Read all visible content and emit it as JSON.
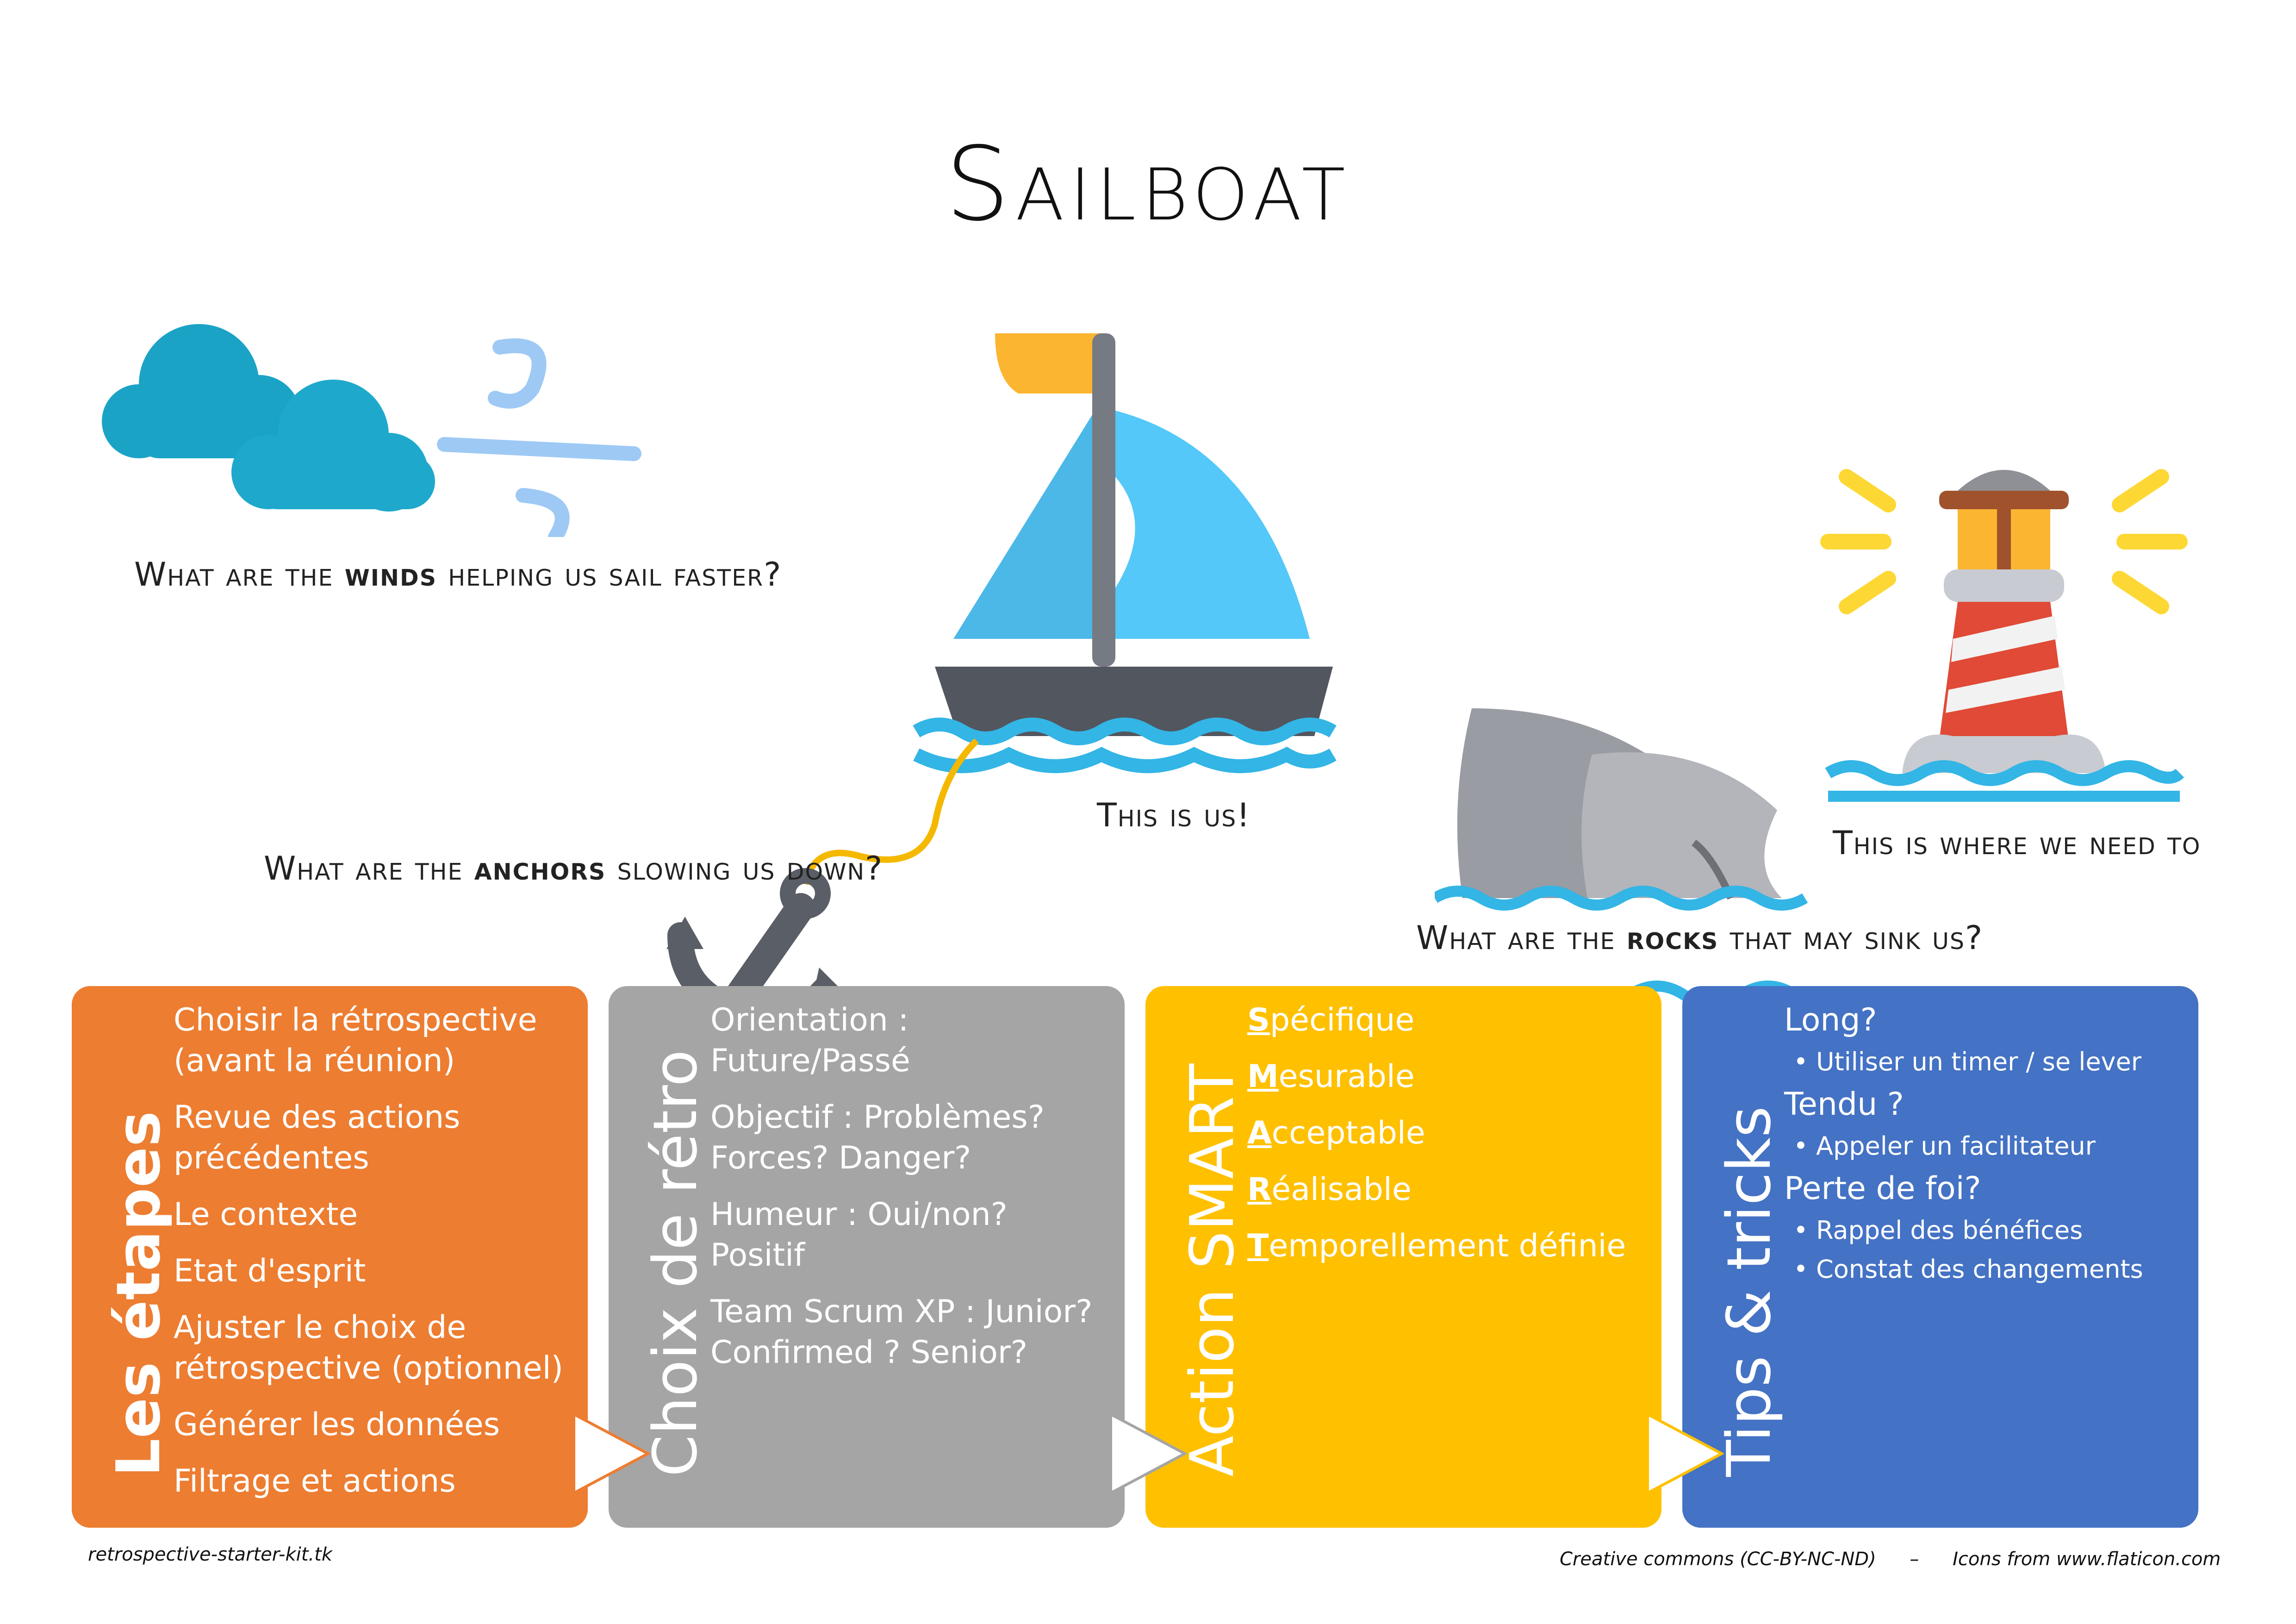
{
  "title": "Sailboat",
  "prompts": {
    "winds": {
      "pre": "What are the ",
      "key": "winds",
      "post": " helping us sail faster?"
    },
    "us": "This is us!",
    "anchors": {
      "pre": "What are the ",
      "key": "anchors",
      "post": " slowing us down?"
    },
    "goal": "This is where we need to",
    "rocks": {
      "pre": "What are the ",
      "key": "rocks",
      "post": " that may sink us?"
    }
  },
  "panels": [
    {
      "heading": "Les étapes",
      "color": "#ED7D31",
      "items": [
        "Choisir la rétrospective (avant la réunion)",
        "Revue des actions précédentes",
        "Le contexte",
        "Etat d'esprit",
        "Ajuster le choix de rétrospective (optionnel)",
        "Générer les données",
        "Filtrage et actions"
      ]
    },
    {
      "heading": "Choix de rétro",
      "color": "#A5A5A5",
      "items": [
        "Orientation : Future/Passé",
        "Objectif : Problèmes? Forces? Danger?",
        "Humeur : Oui/non? Positif",
        "Team Scrum XP : Junior? Confirmed ? Senior?"
      ]
    },
    {
      "heading": "Action SMART",
      "color": "#FFC000",
      "items": [
        {
          "initial": "S",
          "rest": "pécifique"
        },
        {
          "initial": "M",
          "rest": "esurable"
        },
        {
          "initial": "A",
          "rest": "cceptable"
        },
        {
          "initial": "R",
          "rest": "éalisable"
        },
        {
          "initial": "T",
          "rest": "emporellement définie"
        }
      ]
    },
    {
      "heading": "Tips & tricks",
      "color": "#4472C4",
      "items": [
        {
          "q": "Long?",
          "tips": [
            "Utiliser un timer / se lever"
          ]
        },
        {
          "q": "Tendu ?",
          "tips": [
            "Appeler un facilitateur"
          ]
        },
        {
          "q": "Perte de foi?",
          "tips": [
            "Rappel des bénéfices",
            "Constat des changements"
          ]
        }
      ]
    }
  ],
  "footer": {
    "left": "retrospective-starter-kit.tk",
    "license": "Creative commons (CC-BY-NC-ND)",
    "separator": "–",
    "icons": "Icons from www.flaticon.com"
  },
  "icons": [
    "clouds-wind-icon",
    "sailboat-icon",
    "anchor-icon",
    "shark-fin-icon",
    "lighthouse-icon"
  ]
}
